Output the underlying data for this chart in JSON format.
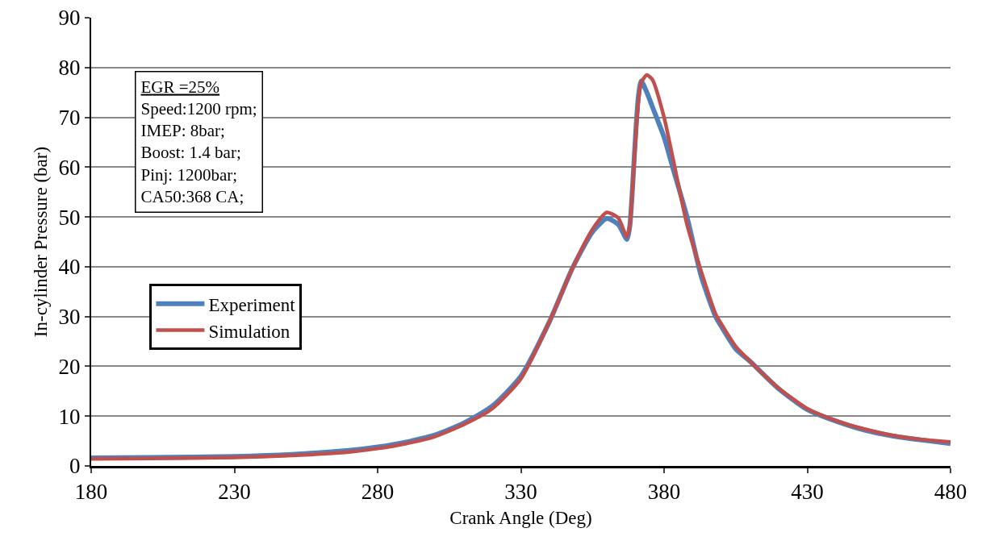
{
  "chart_data": {
    "type": "line",
    "xlabel": "Crank Angle (Deg)",
    "ylabel": "In-cylinder Pressure (bar)",
    "annotations": [
      "EGR =25%\nSpeed:1200 rpm;\nIMEP: 8bar;\nBoost: 1.4 bar;\nPinj: 1200bar;\nCA50:368 CA;"
    ],
    "x": [
      180,
      200,
      230,
      250,
      270,
      280,
      290,
      300,
      310,
      320,
      330,
      340,
      348,
      355,
      360,
      364,
      367,
      368,
      369,
      370,
      371,
      372,
      374,
      376,
      380,
      383,
      388,
      393,
      398,
      400,
      405,
      410,
      420,
      430,
      440,
      450,
      460,
      470,
      480
    ],
    "series": [
      {
        "name": "Experiment",
        "color": "#4f81bd",
        "values": [
          1.6,
          1.7,
          1.9,
          2.3,
          3.1,
          3.8,
          4.8,
          6.2,
          8.6,
          12,
          18,
          29,
          39.7,
          47,
          49.7,
          48.5,
          45.5,
          48,
          56,
          66,
          74,
          77.3,
          75,
          72,
          66,
          60,
          50,
          38,
          30,
          28,
          23.5,
          21,
          15.5,
          11.3,
          9,
          7.2,
          6,
          5.2,
          4.5
        ]
      },
      {
        "name": "Simulation",
        "color": "#c0504d",
        "values": [
          1.4,
          1.5,
          1.7,
          2.1,
          2.8,
          3.5,
          4.5,
          5.9,
          8.3,
          11.5,
          17.5,
          29,
          39.7,
          47.5,
          50.9,
          49.8,
          46,
          48,
          56,
          65,
          73,
          77,
          78.5,
          77.5,
          70,
          62,
          48.5,
          39,
          30.5,
          28.5,
          24,
          21,
          15.6,
          11.5,
          9.1,
          7.4,
          6.1,
          5.3,
          4.8
        ]
      }
    ],
    "xlim": [
      180,
      480
    ],
    "xticks": [
      180,
      230,
      280,
      330,
      380,
      430,
      480
    ],
    "ylim": [
      0,
      90
    ],
    "yticks": [
      0,
      10,
      20,
      30,
      40,
      50,
      60,
      70,
      80,
      90
    ],
    "grid": "y",
    "legend": "left",
    "marker": "none",
    "line_style": "solid"
  }
}
